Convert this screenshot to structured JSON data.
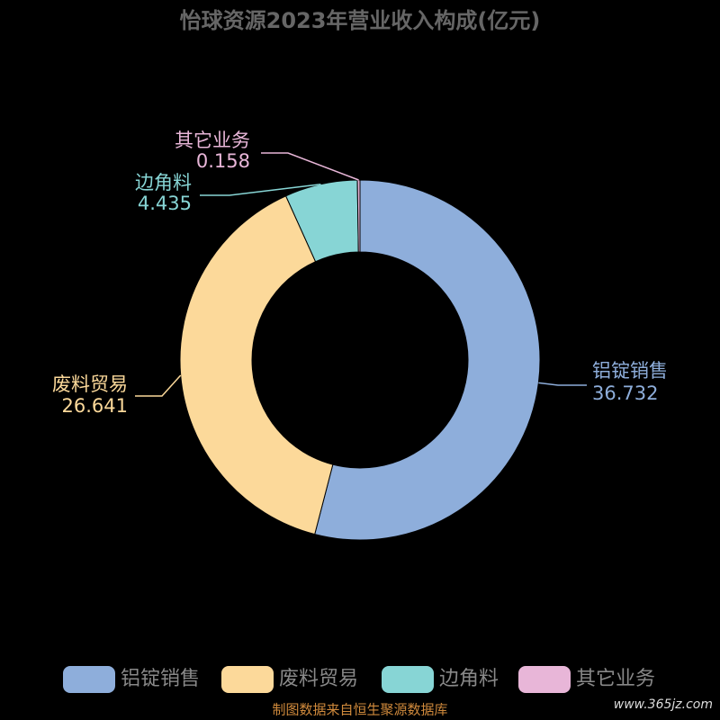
{
  "chart_data": {
    "type": "pie",
    "title": "怡球资源2023年营业收入构成(亿元)",
    "categories": [
      "铝锭销售",
      "废料贸易",
      "边角料",
      "其它业务"
    ],
    "values": [
      36.732,
      26.641,
      4.435,
      0.158
    ],
    "colors": [
      "#8eaedb",
      "#fcd99a",
      "#87d5d5",
      "#e8b6d8"
    ],
    "legend": "bottom",
    "footer": "制图数据来自恒生聚源数据库",
    "watermark": "www.365jz.com"
  }
}
